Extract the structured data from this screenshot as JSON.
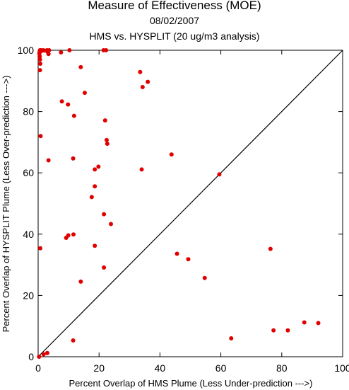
{
  "chart_data": {
    "type": "scatter",
    "title": "Measure of Effectiveness (MOE)",
    "subtitle_date": "08/02/2007",
    "subtitle_analysis": "HMS vs. HYSPLIT  (20 ug/m3 analysis)",
    "xlabel": "Percent Overlap of HMS Plume (Less Under-prediction --->)",
    "ylabel": "Percent Overlap of HYSPLIT Plume (Less Over-prediction --->)",
    "xlim": [
      0,
      100
    ],
    "ylim": [
      0,
      100
    ],
    "xticks": [
      "0",
      "20",
      "40",
      "60",
      "80",
      "100"
    ],
    "yticks": [
      "0",
      "20",
      "40",
      "60",
      "80",
      "100"
    ],
    "reference_line": "y = x",
    "point_color": "#e00000",
    "points": [
      [
        0.3,
        0
      ],
      [
        1.8,
        0.8
      ],
      [
        3.0,
        1.2
      ],
      [
        11.5,
        5.3
      ],
      [
        0.5,
        99.5
      ],
      [
        0.6,
        100
      ],
      [
        0.9,
        100
      ],
      [
        1.1,
        99.8
      ],
      [
        1.6,
        100
      ],
      [
        2.0,
        99.9
      ],
      [
        0.4,
        98.9
      ],
      [
        0.5,
        98.0
      ],
      [
        0.6,
        97.0
      ],
      [
        0.7,
        95.6
      ],
      [
        0.6,
        93.5
      ],
      [
        2.9,
        100
      ],
      [
        3.1,
        99.5
      ],
      [
        3.4,
        98.8
      ],
      [
        3.6,
        100
      ],
      [
        7.5,
        99.3
      ],
      [
        10.3,
        100
      ],
      [
        21.5,
        100
      ],
      [
        22.3,
        100
      ],
      [
        14.0,
        94.5
      ],
      [
        15.3,
        86.1
      ],
      [
        7.8,
        83.3
      ],
      [
        9.8,
        82.3
      ],
      [
        11.8,
        78.6
      ],
      [
        33.5,
        92.9
      ],
      [
        34.3,
        88.0
      ],
      [
        36.0,
        89.7
      ],
      [
        22.0,
        77.1
      ],
      [
        22.5,
        70.7
      ],
      [
        22.7,
        69.5
      ],
      [
        0.8,
        72.0
      ],
      [
        3.4,
        64.1
      ],
      [
        11.5,
        64.7
      ],
      [
        19.8,
        62.0
      ],
      [
        18.6,
        61.1
      ],
      [
        34.0,
        61.1
      ],
      [
        43.8,
        66.0
      ],
      [
        59.5,
        59.5
      ],
      [
        18.6,
        55.6
      ],
      [
        17.6,
        52.1
      ],
      [
        21.6,
        46.5
      ],
      [
        23.9,
        43.3
      ],
      [
        11.6,
        39.9
      ],
      [
        9.9,
        39.6
      ],
      [
        9.2,
        38.8
      ],
      [
        0.7,
        35.4
      ],
      [
        18.6,
        36.2
      ],
      [
        45.6,
        33.6
      ],
      [
        49.3,
        31.8
      ],
      [
        54.7,
        25.7
      ],
      [
        76.3,
        35.2
      ],
      [
        21.6,
        29.1
      ],
      [
        14.0,
        24.5
      ],
      [
        63.4,
        6.0
      ],
      [
        77.3,
        8.6
      ],
      [
        82.0,
        8.6
      ],
      [
        87.4,
        11.2
      ],
      [
        92.0,
        11.0
      ]
    ]
  }
}
